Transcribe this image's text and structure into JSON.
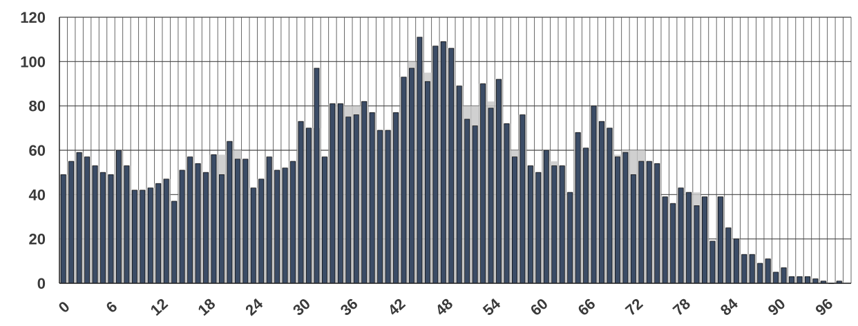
{
  "chart_data": {
    "type": "bar",
    "title": "",
    "xlabel": "",
    "ylabel": "",
    "ylim": [
      0,
      120
    ],
    "y_ticks": [
      "0",
      "20",
      "40",
      "60",
      "80",
      "100",
      "120"
    ],
    "x_tick_labels": [
      "0",
      "6",
      "12",
      "18",
      "24",
      "30",
      "36",
      "42",
      "48",
      "54",
      "60",
      "66",
      "72",
      "78",
      "84",
      "90",
      "96"
    ],
    "grid": true,
    "bar_color": "#3b4c66",
    "area_color": "#c8c8c8",
    "categories": [
      0,
      1,
      2,
      3,
      4,
      5,
      6,
      7,
      8,
      9,
      10,
      11,
      12,
      13,
      14,
      15,
      16,
      17,
      18,
      19,
      20,
      21,
      22,
      23,
      24,
      25,
      26,
      27,
      28,
      29,
      30,
      31,
      32,
      33,
      34,
      35,
      36,
      37,
      38,
      39,
      40,
      41,
      42,
      43,
      44,
      45,
      46,
      47,
      48,
      49,
      50,
      51,
      52,
      53,
      54,
      55,
      56,
      57,
      58,
      59,
      60,
      61,
      62,
      63,
      64,
      65,
      66,
      67,
      68,
      69,
      70,
      71,
      72,
      73,
      74,
      75,
      76,
      77,
      78,
      79,
      80,
      81,
      82,
      83,
      84,
      85,
      86,
      87,
      88,
      89,
      90,
      91,
      92,
      93,
      94,
      95,
      96,
      97,
      98
    ],
    "values": [
      49,
      55,
      59,
      57,
      53,
      50,
      49,
      60,
      53,
      42,
      42,
      43,
      45,
      47,
      37,
      51,
      57,
      54,
      50,
      58,
      49,
      64,
      56,
      56,
      43,
      47,
      57,
      51,
      52,
      55,
      73,
      70,
      97,
      57,
      81,
      81,
      75,
      76,
      82,
      77,
      69,
      69,
      77,
      93,
      97,
      111,
      91,
      107,
      109,
      106,
      89,
      74,
      71,
      90,
      79,
      92,
      72,
      57,
      76,
      53,
      50,
      60,
      53,
      53,
      41,
      68,
      61,
      80,
      73,
      70,
      57,
      59,
      49,
      55,
      55,
      54,
      39,
      36,
      43,
      41,
      35,
      39,
      19,
      39,
      25,
      20,
      13,
      13,
      9,
      11,
      5,
      7,
      3,
      3,
      3,
      2,
      1,
      0,
      1
    ],
    "area_values": [
      49,
      55,
      59,
      57,
      53,
      50,
      49,
      60,
      53,
      42,
      42,
      43,
      45,
      47,
      37,
      51,
      57,
      54,
      50,
      58,
      58,
      64,
      60,
      56,
      43,
      47,
      57,
      51,
      52,
      55,
      73,
      70,
      70,
      57,
      81,
      81,
      80,
      80,
      82,
      77,
      69,
      69,
      77,
      93,
      100,
      100,
      95,
      107,
      109,
      106,
      89,
      80,
      80,
      90,
      82,
      92,
      72,
      60,
      76,
      53,
      50,
      60,
      55,
      53,
      41,
      68,
      61,
      80,
      73,
      70,
      58,
      60,
      60,
      60,
      55,
      54,
      39,
      36,
      43,
      41,
      41,
      39,
      19,
      39,
      25,
      20,
      13,
      13,
      9,
      11,
      5,
      7,
      3,
      3,
      3,
      2,
      1,
      0,
      1
    ]
  }
}
